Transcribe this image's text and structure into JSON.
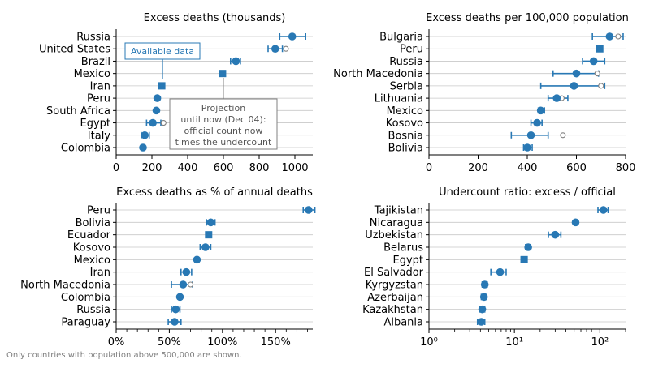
{
  "footnote": "Only countries with population above 500,000 are shown.",
  "colors": {
    "series": "#2878b4",
    "grid": "#c8c8c8",
    "axis": "#000000",
    "hollow_marker": "#808080"
  },
  "annotations": {
    "available_label": "Available data",
    "projection_lines": [
      "Projection",
      "until now (Dec 04):",
      "official count now",
      "times the undercount"
    ]
  },
  "chart_data": [
    {
      "type": "scatter",
      "title": "Excess deaths (thousands)",
      "scale": "linear",
      "xlim": [
        0,
        1100
      ],
      "ticks": [
        0,
        200,
        400,
        600,
        800,
        1000
      ],
      "tick_labels": [
        "0",
        "200",
        "400",
        "600",
        "800",
        "1000"
      ],
      "grid": true,
      "categories": [
        "Russia",
        "United States",
        "Brazil",
        "Mexico",
        "Iran",
        "Peru",
        "South Africa",
        "Egypt",
        "Italy",
        "Colombia"
      ],
      "marker": [
        "circle",
        "circle",
        "circle",
        "square",
        "square",
        "circle",
        "circle",
        "circle",
        "circle",
        "circle"
      ],
      "values": [
        985,
        890,
        670,
        595,
        255,
        230,
        225,
        205,
        160,
        150
      ],
      "low": [
        915,
        850,
        640,
        null,
        null,
        null,
        null,
        170,
        140,
        null
      ],
      "high": [
        1060,
        930,
        695,
        null,
        null,
        null,
        null,
        250,
        185,
        null
      ],
      "projection": [
        null,
        950,
        null,
        null,
        null,
        null,
        null,
        265,
        null,
        null
      ]
    },
    {
      "type": "scatter",
      "title": "Excess deaths per 100,000 population",
      "scale": "linear",
      "xlim": [
        0,
        800
      ],
      "ticks": [
        0,
        200,
        400,
        600,
        800
      ],
      "tick_labels": [
        "0",
        "200",
        "400",
        "600",
        "800"
      ],
      "grid": true,
      "categories": [
        "Bulgaria",
        "Peru",
        "Russia",
        "North Macedonia",
        "Serbia",
        "Lithuania",
        "Mexico",
        "Kosovo",
        "Bosnia",
        "Bolivia"
      ],
      "marker": [
        "circle",
        "square",
        "circle",
        "circle",
        "circle",
        "circle",
        "circle",
        "circle",
        "circle",
        "circle"
      ],
      "values": [
        735,
        695,
        670,
        600,
        590,
        520,
        455,
        440,
        415,
        400
      ],
      "low": [
        665,
        null,
        625,
        505,
        455,
        485,
        445,
        415,
        335,
        385
      ],
      "high": [
        790,
        null,
        715,
        690,
        715,
        565,
        470,
        460,
        485,
        420
      ],
      "projection": [
        770,
        null,
        null,
        685,
        700,
        540,
        null,
        null,
        545,
        null
      ]
    },
    {
      "type": "scatter",
      "title": "Excess deaths as % of annual deaths",
      "scale": "linear",
      "xlim": [
        0,
        185
      ],
      "ticks": [
        0,
        50,
        100,
        150
      ],
      "tick_labels": [
        "0%",
        "50%",
        "100%",
        "150%"
      ],
      "minor_ticks": [
        10,
        20,
        30,
        40,
        60,
        70,
        80,
        90,
        110,
        120,
        130,
        140,
        160,
        170,
        180
      ],
      "grid": true,
      "categories": [
        "Peru",
        "Bolivia",
        "Ecuador",
        "Kosovo",
        "Mexico",
        "Iran",
        "North Macedonia",
        "Colombia",
        "Russia",
        "Paraguay"
      ],
      "marker": [
        "circle",
        "circle",
        "square",
        "circle",
        "circle",
        "circle",
        "circle",
        "circle",
        "circle",
        "circle"
      ],
      "values": [
        181,
        89,
        87,
        84,
        76,
        66,
        63,
        60,
        56,
        55
      ],
      "low": [
        176,
        85,
        null,
        79,
        null,
        61,
        52,
        null,
        52,
        49
      ],
      "high": [
        187,
        93,
        null,
        89,
        null,
        71,
        72,
        null,
        60,
        61
      ],
      "projection": [
        null,
        null,
        null,
        null,
        null,
        null,
        70,
        null,
        null,
        null
      ]
    },
    {
      "type": "scatter",
      "title": "Undercount ratio: excess / official",
      "scale": "log",
      "xlim": [
        1,
        200
      ],
      "ticks": [
        1,
        10,
        100
      ],
      "tick_labels": [
        "10⁰",
        "10¹",
        "10²"
      ],
      "minor_ticks": [
        2,
        3,
        4,
        5,
        6,
        7,
        8,
        9,
        20,
        30,
        40,
        50,
        60,
        70,
        80,
        90,
        200
      ],
      "grid": true,
      "categories": [
        "Tajikistan",
        "Nicaragua",
        "Uzbekistan",
        "Belarus",
        "Egypt",
        "El Salvador",
        "Kyrgyzstan",
        "Azerbaijan",
        "Kazakhstan",
        "Albania"
      ],
      "marker": [
        "circle",
        "circle",
        "circle",
        "circle",
        "square",
        "circle",
        "circle",
        "circle",
        "circle",
        "circle"
      ],
      "values": [
        110,
        52,
        30,
        14.5,
        13,
        6.8,
        4.5,
        4.4,
        4.2,
        4.1
      ],
      "low": [
        95,
        null,
        25,
        13.5,
        12,
        5.3,
        4.2,
        4.1,
        3.9,
        3.7
      ],
      "high": [
        125,
        null,
        35,
        15.5,
        14,
        8,
        4.8,
        4.7,
        4.5,
        4.5
      ],
      "projection": [
        null,
        null,
        null,
        null,
        null,
        null,
        null,
        null,
        null,
        null
      ]
    }
  ]
}
